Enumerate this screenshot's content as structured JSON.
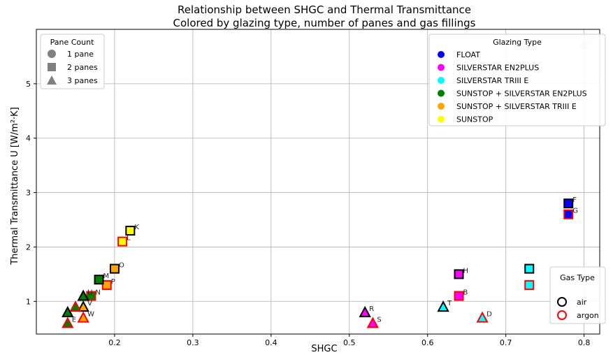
{
  "chart_data": {
    "type": "scatter",
    "title": "Relationship between SHGC and Thermal Transmittance",
    "subtitle": "Colored by glazing type, number of panes and gas fillings",
    "xlabel": "SHGC",
    "ylabel": "Thermal Transmittance U [W/m²·K]",
    "xlim": [
      0.1,
      0.82
    ],
    "ylim": [
      0.4,
      6.0
    ],
    "xticks": [
      0.2,
      0.3,
      0.4,
      0.5,
      0.6,
      0.7,
      0.8
    ],
    "yticks": [
      1,
      2,
      3,
      4,
      5
    ],
    "grid": true,
    "legends": {
      "pane_count": {
        "title": "Pane Count",
        "placement": "top-left",
        "items": [
          {
            "label": "1 pane",
            "marker": "circle"
          },
          {
            "label": "2 panes",
            "marker": "square"
          },
          {
            "label": "3 panes",
            "marker": "triangle"
          }
        ]
      },
      "glazing_type": {
        "title": "Glazing Type",
        "placement": "top-right",
        "items": [
          {
            "label": "FLOAT",
            "color": "#0000ff"
          },
          {
            "label": "SILVERSTAR EN2PLUS",
            "color": "#ff00ff"
          },
          {
            "label": "SILVERSTAR TRIII E",
            "color": "#00ffff"
          },
          {
            "label": "SUNSTOP + SILVERSTAR EN2PLUS",
            "color": "#008000"
          },
          {
            "label": "SUNSTOP + SILVERSTAR TRIII E",
            "color": "#ffa500"
          },
          {
            "label": "SUNSTOP",
            "color": "#ffff00"
          }
        ]
      },
      "gas_type": {
        "title": "Gas Type",
        "placement": "bottom-right",
        "items": [
          {
            "label": "air",
            "edge": "#000000"
          },
          {
            "label": "argon",
            "edge": "#ff0000"
          }
        ]
      }
    },
    "points": [
      {
        "label": "A",
        "x": 0.8,
        "y": 5.7,
        "marker": "circle",
        "color": "#0000ff",
        "gas": "air",
        "faded": true
      },
      {
        "label": "F",
        "x": 0.78,
        "y": 2.8,
        "marker": "square",
        "color": "#0000ff",
        "gas": "air"
      },
      {
        "label": "G",
        "x": 0.78,
        "y": 2.6,
        "marker": "square",
        "color": "#0000ff",
        "gas": "argon"
      },
      {
        "label": "H",
        "x": 0.64,
        "y": 1.5,
        "marker": "square",
        "color": "#ff00ff",
        "gas": "air"
      },
      {
        "label": "B",
        "x": 0.64,
        "y": 1.1,
        "marker": "square",
        "color": "#ff00ff",
        "gas": "argon"
      },
      {
        "label": "",
        "x": 0.73,
        "y": 1.6,
        "marker": "square",
        "color": "#00ffff",
        "gas": "air"
      },
      {
        "label": "",
        "x": 0.73,
        "y": 1.3,
        "marker": "square",
        "color": "#00ffff",
        "gas": "argon"
      },
      {
        "label": "T",
        "x": 0.62,
        "y": 0.9,
        "marker": "triangle",
        "color": "#00ffff",
        "gas": "air"
      },
      {
        "label": "D",
        "x": 0.67,
        "y": 0.7,
        "marker": "triangle",
        "color": "#00ffff",
        "gas": "argon"
      },
      {
        "label": "R",
        "x": 0.52,
        "y": 0.8,
        "marker": "triangle",
        "color": "#ff00ff",
        "gas": "air"
      },
      {
        "label": "S",
        "x": 0.53,
        "y": 0.6,
        "marker": "triangle",
        "color": "#ff00ff",
        "gas": "argon"
      },
      {
        "label": "K",
        "x": 0.22,
        "y": 2.3,
        "marker": "square",
        "color": "#ffff00",
        "gas": "air"
      },
      {
        "label": "L",
        "x": 0.21,
        "y": 2.1,
        "marker": "square",
        "color": "#ffff00",
        "gas": "argon"
      },
      {
        "label": "O",
        "x": 0.2,
        "y": 1.6,
        "marker": "square",
        "color": "#ffa500",
        "gas": "air"
      },
      {
        "label": "P",
        "x": 0.19,
        "y": 1.3,
        "marker": "square",
        "color": "#ffa500",
        "gas": "argon"
      },
      {
        "label": "M",
        "x": 0.18,
        "y": 1.4,
        "marker": "square",
        "color": "#008000",
        "gas": "air"
      },
      {
        "label": "N",
        "x": 0.17,
        "y": 1.1,
        "marker": "square",
        "color": "#008000",
        "gas": "argon"
      },
      {
        "label": "U",
        "x": 0.16,
        "y": 1.1,
        "marker": "triangle",
        "color": "#008000",
        "gas": "air"
      },
      {
        "label": "V",
        "x": 0.16,
        "y": 0.9,
        "marker": "triangle",
        "color": "#ffa500",
        "gas": "air"
      },
      {
        "label": "W",
        "x": 0.16,
        "y": 0.7,
        "marker": "triangle",
        "color": "#ffa500",
        "gas": "argon"
      },
      {
        "label": "",
        "x": 0.15,
        "y": 0.9,
        "marker": "triangle",
        "color": "#008000",
        "gas": "argon"
      },
      {
        "label": "",
        "x": 0.14,
        "y": 0.8,
        "marker": "triangle",
        "color": "#008000",
        "gas": "air"
      },
      {
        "label": "E",
        "x": 0.14,
        "y": 0.6,
        "marker": "triangle",
        "color": "#008000",
        "gas": "argon"
      }
    ]
  }
}
